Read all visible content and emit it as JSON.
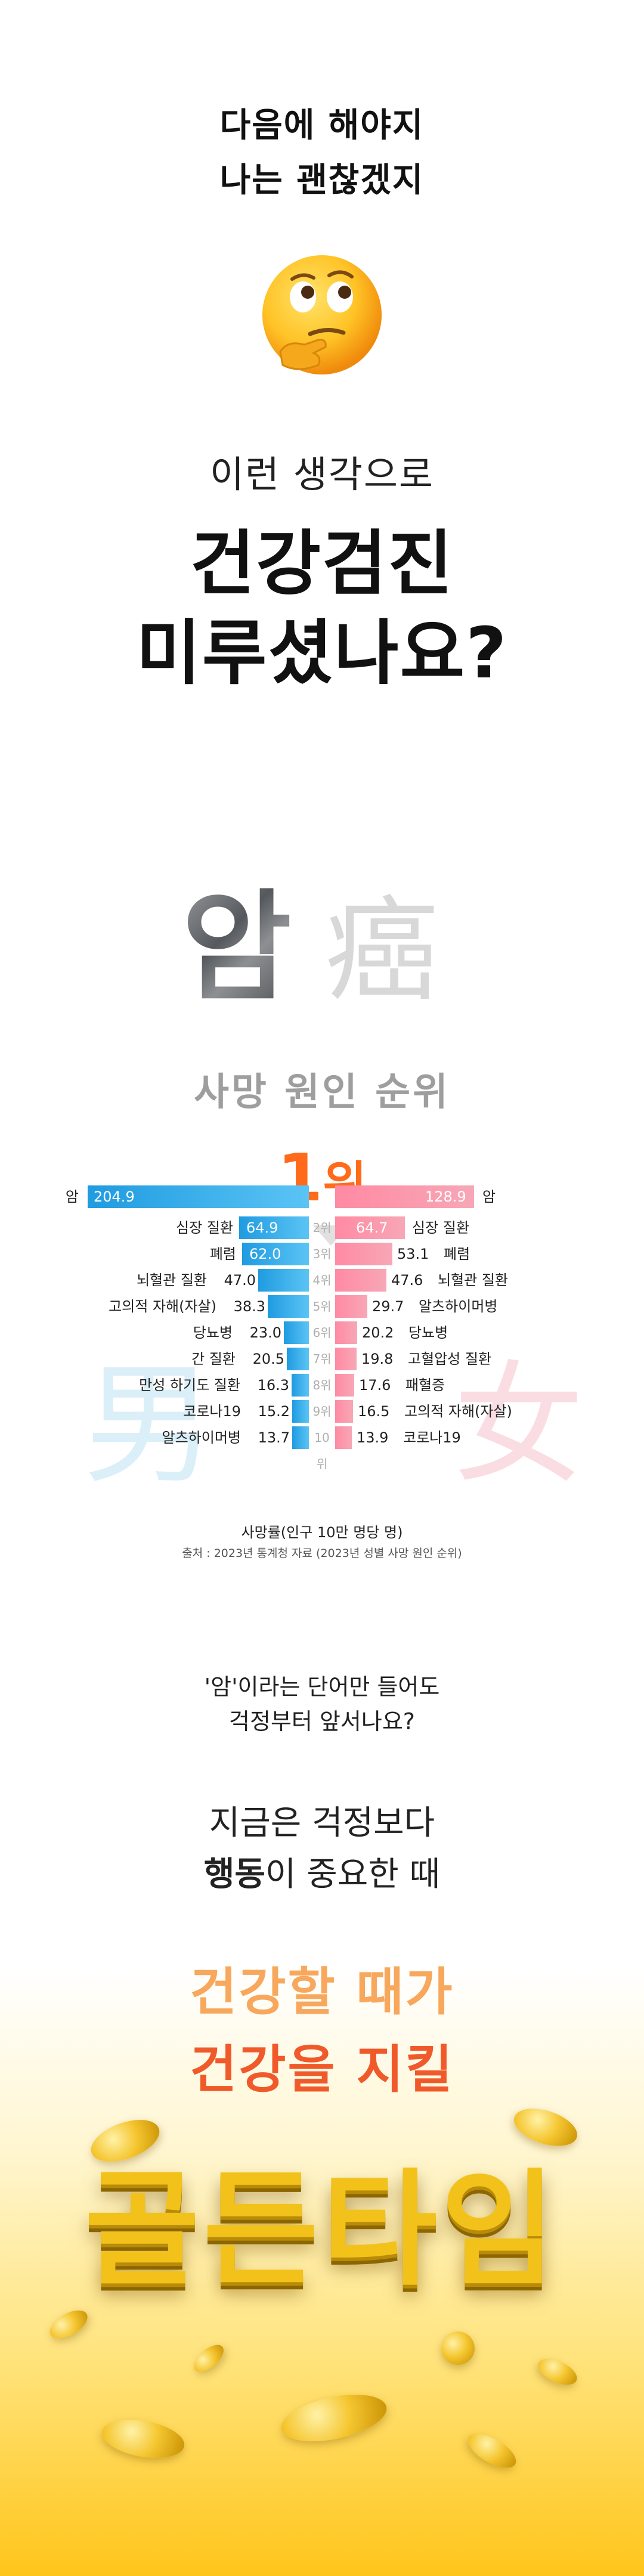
{
  "intro": {
    "line1": "다음에 해야지",
    "line2": "나는 괜찮겠지"
  },
  "emoji": {
    "name": "thinking-face-icon"
  },
  "sub": "이런 생각으로",
  "headline": {
    "line1": "건강검진",
    "line2": "미루셨나요?"
  },
  "cancer": {
    "word": "암",
    "hanja": "癌"
  },
  "cause_title": "사망 원인 순위",
  "rank_label": {
    "num": "1",
    "unit": "위"
  },
  "gender_hanja": {
    "male": "男",
    "female": "女"
  },
  "chart_data": {
    "type": "bar",
    "rank_labels": [
      "",
      "2위",
      "3위",
      "4위",
      "5위",
      "6위",
      "7위",
      "8위",
      "9위",
      "10위"
    ],
    "male": {
      "colors": "#1f9be0",
      "categories": [
        "암",
        "심장 질환",
        "폐렴",
        "뇌혈관 질환",
        "고의적 자해(자살)",
        "당뇨병",
        "간 질환",
        "만성 하기도 질환",
        "코로나19",
        "알츠하이머병"
      ],
      "values": [
        204.9,
        64.9,
        62.0,
        47.0,
        38.3,
        23.0,
        20.5,
        16.3,
        15.2,
        13.7
      ],
      "labels": [
        "204.9",
        "64.9",
        "62.0",
        "47.0",
        "38.3",
        "23.0",
        "20.5",
        "16.3",
        "15.2",
        "13.7"
      ]
    },
    "female": {
      "colors": "#ff8aa3",
      "categories": [
        "암",
        "심장 질환",
        "폐렴",
        "뇌혈관 질환",
        "알츠하이머병",
        "당뇨병",
        "고혈압성 질환",
        "패혈증",
        "고의적 자해(자살)",
        "코로나19"
      ],
      "values": [
        128.9,
        64.7,
        53.1,
        47.6,
        29.7,
        20.2,
        19.8,
        17.6,
        16.5,
        13.9
      ],
      "labels": [
        "128.9",
        "64.7",
        "53.1",
        "47.6",
        "29.7",
        "20.2",
        "19.8",
        "17.6",
        "16.5",
        "13.9"
      ]
    },
    "axis_note": "사망률(인구 10만 명당 명)",
    "source": "출처 : 2023년 통계청 자료 (2023년 성별 사망 원인 순위)"
  },
  "question": {
    "line1": "'암'이라는 단어만 들어도",
    "line2": "걱정부터 앞서나요?"
  },
  "action": {
    "line1": "지금은 걱정보다",
    "line2_bold": "행동",
    "line2_rest": "이 중요한 때"
  },
  "golden": {
    "line1": "건강할 때가",
    "line2": "건강을 지킬",
    "big": "골든타임"
  }
}
